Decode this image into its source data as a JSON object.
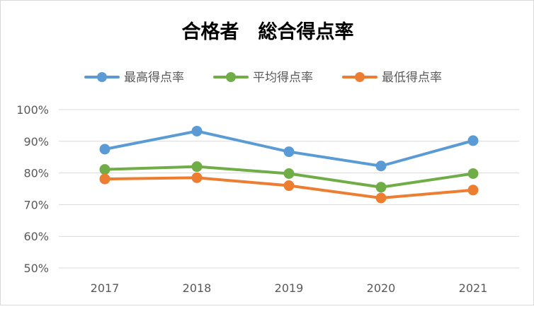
{
  "chart_data": {
    "type": "line",
    "title": "合格者　総合得点率",
    "categories": [
      "2017",
      "2018",
      "2019",
      "2020",
      "2021"
    ],
    "series": [
      {
        "name": "最高得点率",
        "color": "#5b9bd5",
        "values": [
          87.5,
          93.2,
          86.7,
          82.2,
          90.2
        ]
      },
      {
        "name": "平均得点率",
        "color": "#70ad47",
        "values": [
          81.1,
          82.0,
          79.8,
          75.5,
          79.8
        ]
      },
      {
        "name": "最低得点率",
        "color": "#ed7d31",
        "values": [
          78.1,
          78.5,
          76.0,
          72.1,
          74.6
        ]
      }
    ],
    "ylim": [
      50,
      100
    ],
    "yticks": [
      "50%",
      "60%",
      "70%",
      "80%",
      "90%",
      "100%"
    ],
    "grid": true,
    "legend": "top"
  }
}
